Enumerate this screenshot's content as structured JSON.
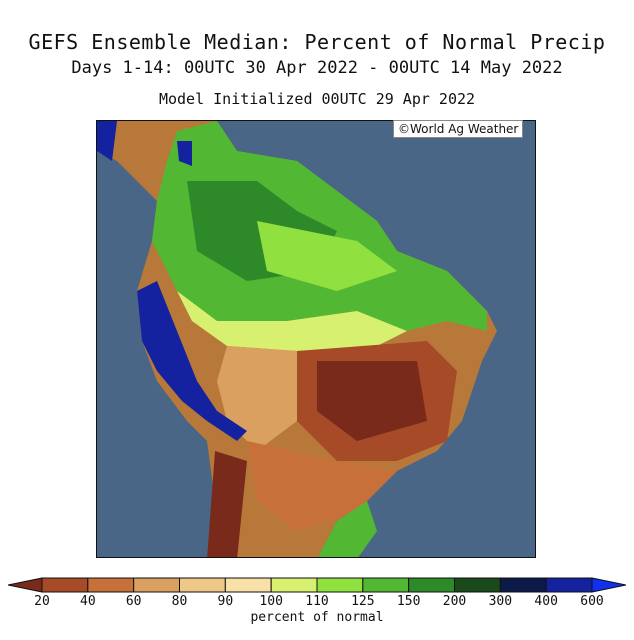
{
  "title": {
    "line1": "GEFS Ensemble Median: Percent of Normal Precip",
    "line2": "Days 1-14: 00UTC 30 Apr 2022 - 00UTC 14 May 2022",
    "line3": "Model Initialized 00UTC 29 Apr 2022"
  },
  "credit": "©World Ag Weather",
  "colorbar": {
    "title": "percent of normal",
    "labels": [
      "20",
      "40",
      "60",
      "80",
      "90",
      "100",
      "110",
      "125",
      "150",
      "200",
      "300",
      "400",
      "600"
    ],
    "colors": [
      "#7a2a1a",
      "#a64a28",
      "#c8703a",
      "#d9a060",
      "#eec888",
      "#f8e0a8",
      "#d8f070",
      "#90e040",
      "#52b834",
      "#2e8a28",
      "#1a4a1a",
      "#0c1a4a",
      "#1422a0",
      "#1030f0"
    ]
  },
  "map_colors": {
    "ocean": "#4a6686",
    "border": "#111111"
  }
}
